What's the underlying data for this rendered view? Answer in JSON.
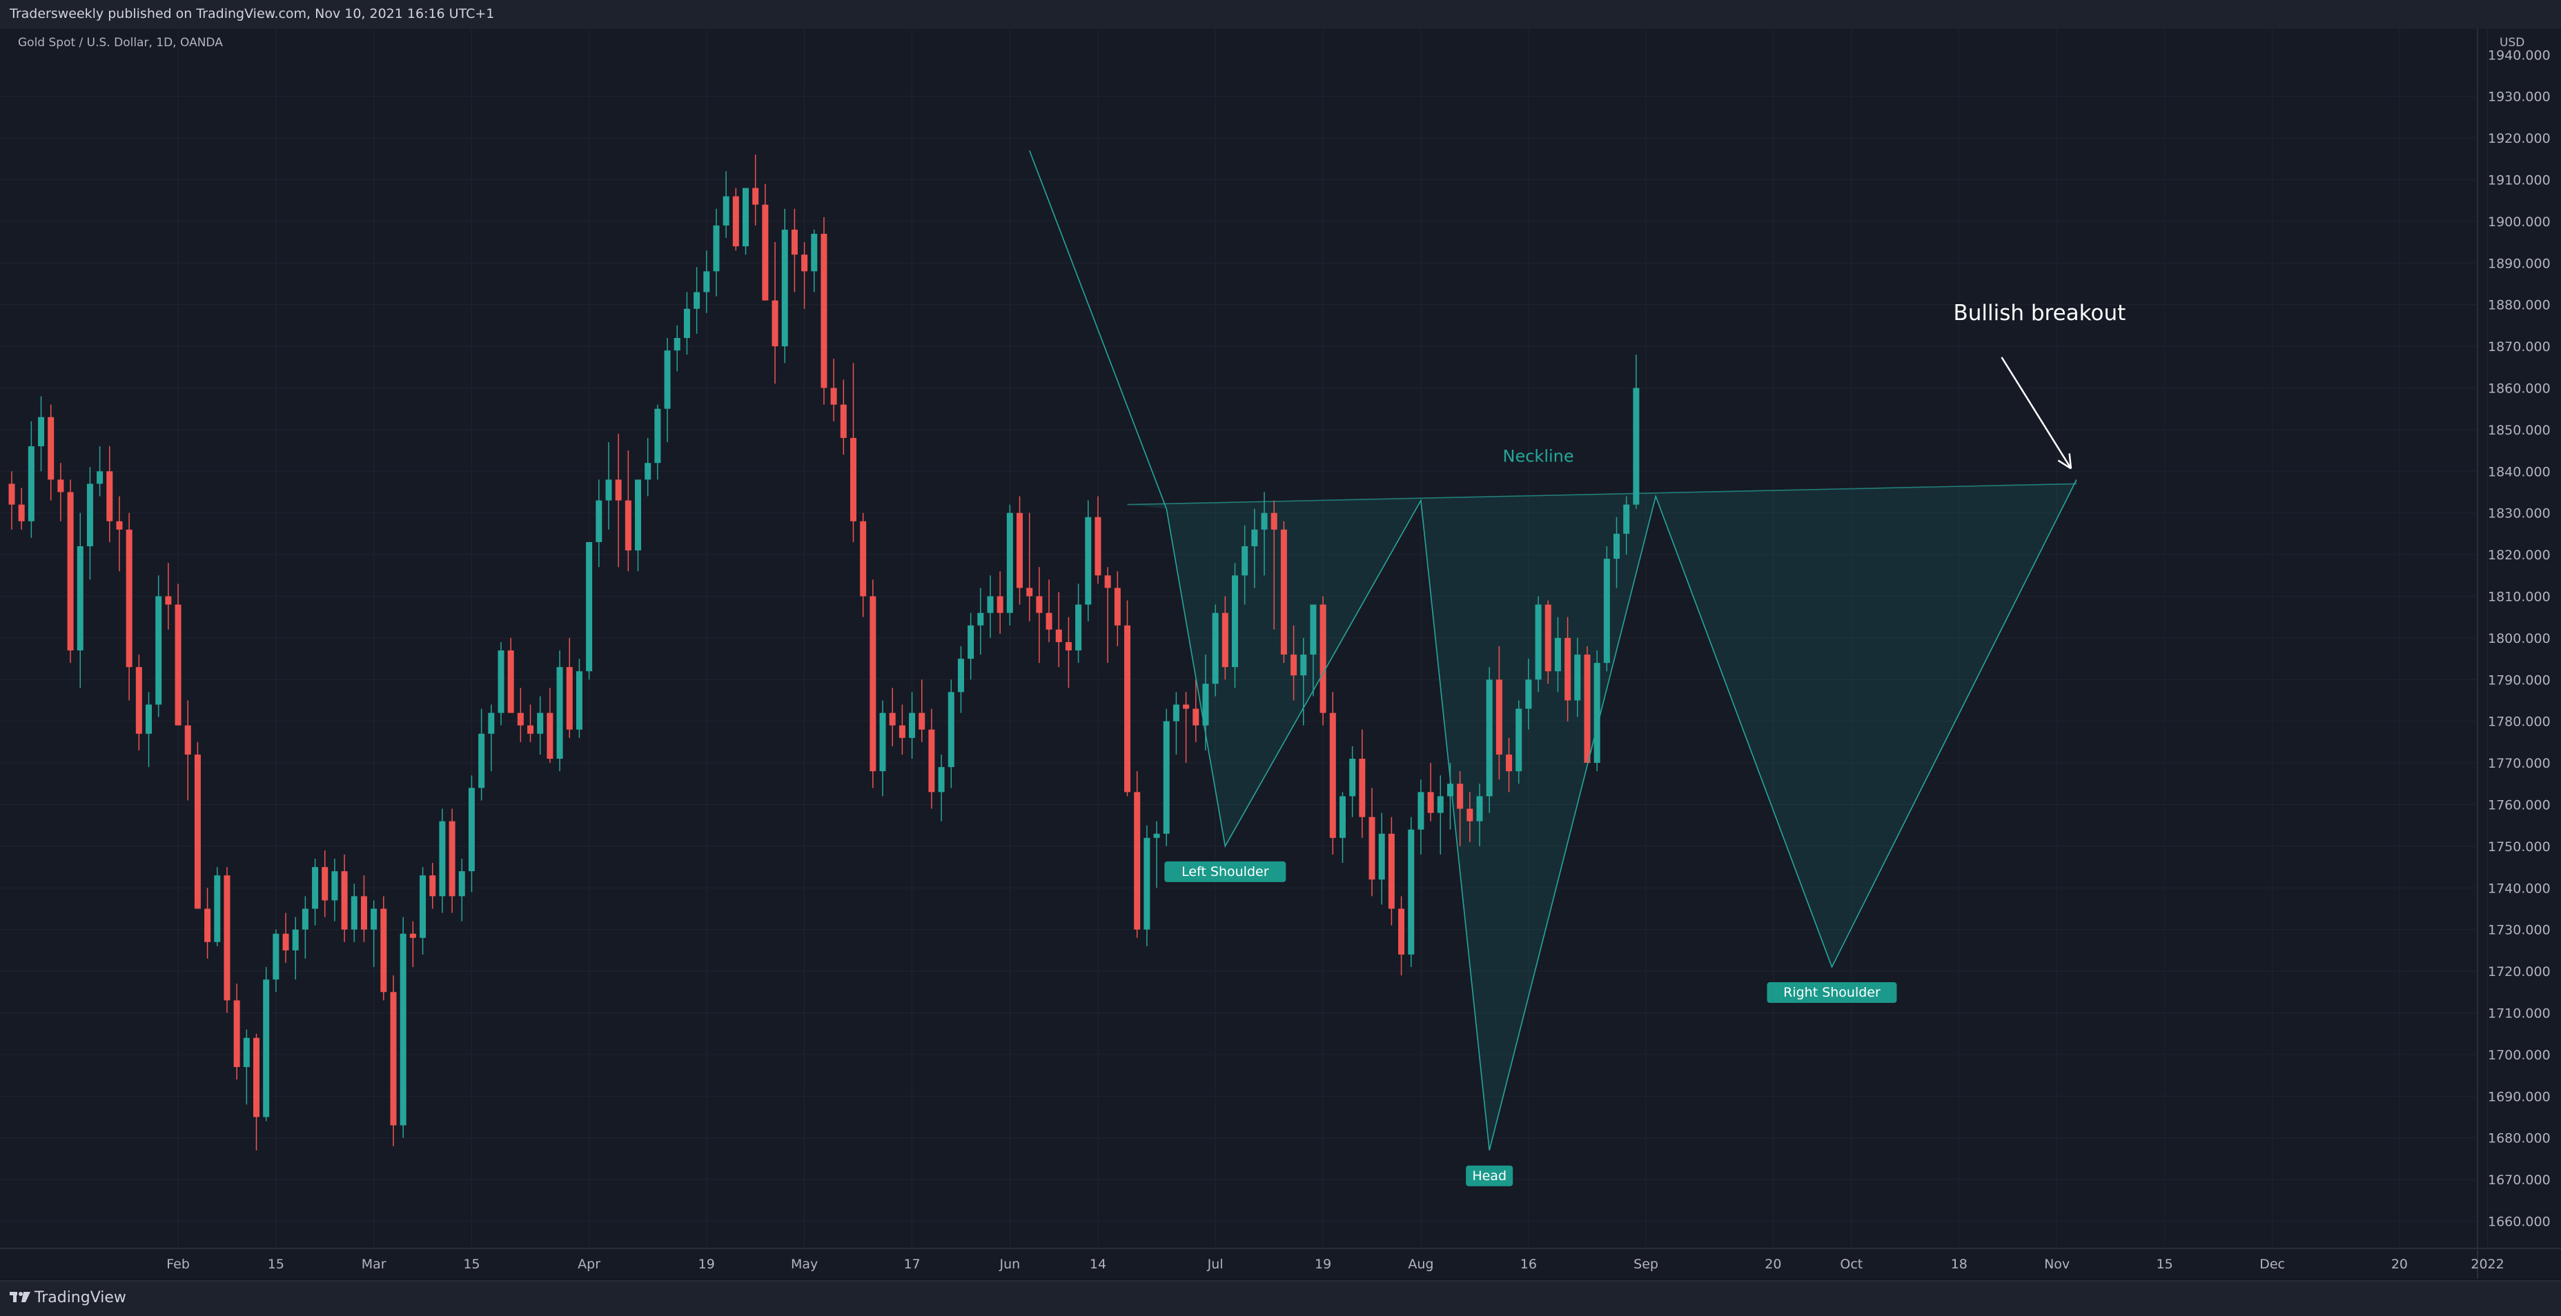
{
  "header": {
    "published": "Tradersweekly published on TradingView.com, Nov 10, 2021 16:16 UTC+1"
  },
  "symbol": {
    "label": "Gold Spot / U.S. Dollar, 1D, OANDA"
  },
  "currency": "USD",
  "footer": {
    "brand": "TradingView"
  },
  "colors": {
    "bg": "#161a25",
    "up": "#26a69a",
    "down": "#ef5350",
    "pattern": "#26a69a",
    "grid": "#1f2430"
  },
  "chart_data": {
    "type": "candlestick",
    "title": "",
    "ylim": [
      1652,
      1954
    ],
    "y_ticks": [
      1660,
      1670,
      1680,
      1690,
      1700,
      1710,
      1720,
      1730,
      1740,
      1750,
      1760,
      1770,
      1780,
      1790,
      1800,
      1810,
      1820,
      1830,
      1840,
      1850,
      1860,
      1870,
      1880,
      1890,
      1900,
      1910,
      1920,
      1930
    ],
    "top_tick_label": "1940.000",
    "x_ticks": [
      {
        "label": "Feb",
        "i": 17
      },
      {
        "label": "15",
        "i": 27
      },
      {
        "label": "Mar",
        "i": 37
      },
      {
        "label": "15",
        "i": 47
      },
      {
        "label": "Apr",
        "i": 59
      },
      {
        "label": "19",
        "i": 71
      },
      {
        "label": "May",
        "i": 81
      },
      {
        "label": "17",
        "i": 92
      },
      {
        "label": "Jun",
        "i": 102
      },
      {
        "label": "14",
        "i": 111
      },
      {
        "label": "Jul",
        "i": 123
      },
      {
        "label": "19",
        "i": 134
      },
      {
        "label": "Aug",
        "i": 144
      },
      {
        "label": "16",
        "i": 155
      },
      {
        "label": "Sep",
        "i": 167
      },
      {
        "label": "20",
        "i": 180
      },
      {
        "label": "Oct",
        "i": 188
      },
      {
        "label": "18",
        "i": 199
      },
      {
        "label": "Nov",
        "i": 209
      },
      {
        "label": "15",
        "i": 220
      },
      {
        "label": "Dec",
        "i": 231
      },
      {
        "label": "20",
        "i": 244
      },
      {
        "label": "2022",
        "i": 253
      }
    ],
    "x_start_date": "Jan 18, 2021",
    "series": [
      [
        1837,
        1840,
        1826,
        1832
      ],
      [
        1832,
        1836,
        1826,
        1828
      ],
      [
        1828,
        1852,
        1824,
        1846
      ],
      [
        1846,
        1858,
        1840,
        1853
      ],
      [
        1853,
        1856,
        1833,
        1838
      ],
      [
        1838,
        1842,
        1828,
        1835
      ],
      [
        1835,
        1838,
        1794,
        1797
      ],
      [
        1797,
        1830,
        1788,
        1822
      ],
      [
        1822,
        1841,
        1814,
        1837
      ],
      [
        1837,
        1846,
        1834,
        1840
      ],
      [
        1840,
        1846,
        1823,
        1828
      ],
      [
        1828,
        1834,
        1816,
        1826
      ],
      [
        1826,
        1830,
        1785,
        1793
      ],
      [
        1793,
        1796,
        1773,
        1777
      ],
      [
        1777,
        1787,
        1769,
        1784
      ],
      [
        1784,
        1815,
        1781,
        1810
      ],
      [
        1810,
        1818,
        1802,
        1808
      ],
      [
        1808,
        1813,
        1781,
        1779
      ],
      [
        1779,
        1785,
        1761,
        1772
      ],
      [
        1772,
        1775,
        1735,
        1735
      ],
      [
        1735,
        1740,
        1723,
        1727
      ],
      [
        1727,
        1745,
        1726,
        1743
      ],
      [
        1743,
        1745,
        1710,
        1713
      ],
      [
        1713,
        1717,
        1694,
        1697
      ],
      [
        1697,
        1706,
        1688,
        1704
      ],
      [
        1704,
        1705,
        1677,
        1685
      ],
      [
        1685,
        1721,
        1684,
        1718
      ],
      [
        1718,
        1730,
        1715,
        1729
      ],
      [
        1729,
        1734,
        1722,
        1725
      ],
      [
        1725,
        1733,
        1718,
        1730
      ],
      [
        1730,
        1738,
        1723,
        1735
      ],
      [
        1735,
        1747,
        1731,
        1745
      ],
      [
        1745,
        1749,
        1733,
        1737
      ],
      [
        1737,
        1747,
        1732,
        1744
      ],
      [
        1744,
        1748,
        1727,
        1730
      ],
      [
        1730,
        1741,
        1727,
        1738
      ],
      [
        1738,
        1743,
        1727,
        1730
      ],
      [
        1730,
        1737,
        1721,
        1735
      ],
      [
        1735,
        1738,
        1713,
        1715
      ],
      [
        1715,
        1719,
        1678,
        1683
      ],
      [
        1683,
        1733,
        1680,
        1729
      ],
      [
        1729,
        1732,
        1721,
        1728
      ],
      [
        1728,
        1745,
        1724,
        1743
      ],
      [
        1743,
        1746,
        1735,
        1738
      ],
      [
        1738,
        1759,
        1734,
        1756
      ],
      [
        1756,
        1759,
        1734,
        1738
      ],
      [
        1738,
        1747,
        1732,
        1744
      ],
      [
        1744,
        1767,
        1739,
        1764
      ],
      [
        1764,
        1783,
        1761,
        1777
      ],
      [
        1777,
        1784,
        1768,
        1782
      ],
      [
        1782,
        1799,
        1779,
        1797
      ],
      [
        1797,
        1800,
        1786,
        1782
      ],
      [
        1782,
        1788,
        1775,
        1779
      ],
      [
        1779,
        1784,
        1775,
        1777
      ],
      [
        1777,
        1786,
        1772,
        1782
      ],
      [
        1782,
        1788,
        1770,
        1771
      ],
      [
        1771,
        1797,
        1768,
        1793
      ],
      [
        1793,
        1800,
        1776,
        1778
      ],
      [
        1778,
        1795,
        1776,
        1792
      ],
      [
        1792,
        1823,
        1790,
        1823
      ],
      [
        1823,
        1838,
        1817,
        1833
      ],
      [
        1833,
        1847,
        1826,
        1838
      ],
      [
        1838,
        1849,
        1817,
        1833
      ],
      [
        1833,
        1845,
        1816,
        1821
      ],
      [
        1821,
        1835,
        1816,
        1838
      ],
      [
        1838,
        1848,
        1834,
        1842
      ],
      [
        1842,
        1856,
        1838,
        1855
      ],
      [
        1855,
        1872,
        1847,
        1869
      ],
      [
        1869,
        1875,
        1864,
        1872
      ],
      [
        1872,
        1883,
        1868,
        1879
      ],
      [
        1879,
        1889,
        1873,
        1883
      ],
      [
        1883,
        1893,
        1878,
        1888
      ],
      [
        1888,
        1903,
        1882,
        1899
      ],
      [
        1899,
        1912,
        1896,
        1906
      ],
      [
        1906,
        1908,
        1893,
        1894
      ],
      [
        1894,
        1907,
        1892,
        1908
      ],
      [
        1908,
        1916,
        1899,
        1904
      ],
      [
        1904,
        1909,
        1881,
        1881
      ],
      [
        1881,
        1895,
        1861,
        1870
      ],
      [
        1870,
        1903,
        1866,
        1898
      ],
      [
        1898,
        1903,
        1883,
        1892
      ],
      [
        1892,
        1895,
        1879,
        1888
      ],
      [
        1888,
        1898,
        1883,
        1897
      ],
      [
        1897,
        1901,
        1856,
        1860
      ],
      [
        1860,
        1867,
        1852,
        1856
      ],
      [
        1856,
        1862,
        1844,
        1848
      ],
      [
        1848,
        1866,
        1823,
        1828
      ],
      [
        1828,
        1830,
        1805,
        1810
      ],
      [
        1810,
        1814,
        1764,
        1768
      ],
      [
        1768,
        1785,
        1762,
        1782
      ],
      [
        1782,
        1788,
        1774,
        1779
      ],
      [
        1779,
        1784,
        1772,
        1776
      ],
      [
        1776,
        1787,
        1771,
        1782
      ],
      [
        1782,
        1790,
        1775,
        1778
      ],
      [
        1778,
        1783,
        1759,
        1763
      ],
      [
        1763,
        1772,
        1756,
        1769
      ],
      [
        1769,
        1790,
        1764,
        1787
      ],
      [
        1787,
        1798,
        1782,
        1795
      ],
      [
        1795,
        1806,
        1790,
        1803
      ],
      [
        1803,
        1812,
        1796,
        1806
      ],
      [
        1806,
        1815,
        1800,
        1810
      ],
      [
        1810,
        1816,
        1801,
        1806
      ],
      [
        1806,
        1832,
        1803,
        1830
      ],
      [
        1830,
        1834,
        1808,
        1812
      ],
      [
        1812,
        1830,
        1804,
        1810
      ],
      [
        1810,
        1817,
        1794,
        1806
      ],
      [
        1806,
        1814,
        1799,
        1802
      ],
      [
        1802,
        1811,
        1793,
        1799
      ],
      [
        1799,
        1805,
        1788,
        1797
      ],
      [
        1797,
        1813,
        1794,
        1808
      ],
      [
        1808,
        1833,
        1804,
        1829
      ],
      [
        1829,
        1834,
        1813,
        1815
      ],
      [
        1815,
        1817,
        1794,
        1812
      ],
      [
        1812,
        1816,
        1798,
        1803
      ],
      [
        1803,
        1809,
        1762,
        1763
      ],
      [
        1763,
        1768,
        1728,
        1730
      ],
      [
        1730,
        1755,
        1726,
        1752
      ],
      [
        1752,
        1756,
        1740,
        1753
      ],
      [
        1753,
        1783,
        1750,
        1780
      ],
      [
        1780,
        1787,
        1772,
        1784
      ],
      [
        1784,
        1787,
        1770,
        1783
      ],
      [
        1783,
        1790,
        1775,
        1779
      ],
      [
        1779,
        1796,
        1773,
        1789
      ],
      [
        1789,
        1808,
        1786,
        1806
      ],
      [
        1806,
        1810,
        1790,
        1793
      ],
      [
        1793,
        1818,
        1788,
        1815
      ],
      [
        1815,
        1827,
        1808,
        1822
      ],
      [
        1822,
        1831,
        1812,
        1826
      ],
      [
        1826,
        1835,
        1815,
        1830
      ],
      [
        1830,
        1833,
        1802,
        1826
      ],
      [
        1826,
        1828,
        1794,
        1796
      ],
      [
        1796,
        1803,
        1785,
        1791
      ],
      [
        1791,
        1800,
        1779,
        1796
      ],
      [
        1796,
        1805,
        1786,
        1808
      ],
      [
        1808,
        1810,
        1779,
        1782
      ],
      [
        1782,
        1787,
        1748,
        1752
      ],
      [
        1752,
        1763,
        1746,
        1762
      ],
      [
        1762,
        1774,
        1757,
        1771
      ],
      [
        1771,
        1778,
        1752,
        1757
      ],
      [
        1757,
        1764,
        1738,
        1742
      ],
      [
        1742,
        1758,
        1736,
        1753
      ],
      [
        1753,
        1757,
        1731,
        1735
      ],
      [
        1735,
        1738,
        1719,
        1724
      ],
      [
        1724,
        1757,
        1721,
        1754
      ],
      [
        1754,
        1766,
        1748,
        1763
      ],
      [
        1763,
        1770,
        1756,
        1758
      ],
      [
        1758,
        1767,
        1748,
        1762
      ],
      [
        1762,
        1770,
        1754,
        1765
      ],
      [
        1765,
        1768,
        1750,
        1759
      ],
      [
        1759,
        1763,
        1751,
        1756
      ],
      [
        1756,
        1765,
        1750,
        1762
      ],
      [
        1762,
        1793,
        1758,
        1790
      ],
      [
        1790,
        1798,
        1766,
        1772
      ],
      [
        1772,
        1776,
        1763,
        1768
      ],
      [
        1768,
        1785,
        1765,
        1783
      ],
      [
        1783,
        1795,
        1778,
        1790
      ],
      [
        1790,
        1810,
        1787,
        1808
      ],
      [
        1808,
        1809,
        1789,
        1792
      ],
      [
        1792,
        1805,
        1787,
        1800
      ],
      [
        1800,
        1805,
        1780,
        1785
      ],
      [
        1785,
        1800,
        1781,
        1796
      ],
      [
        1796,
        1798,
        1771,
        1770
      ],
      [
        1770,
        1797,
        1768,
        1794
      ],
      [
        1794,
        1822,
        1792,
        1819
      ],
      [
        1819,
        1829,
        1812,
        1825
      ],
      [
        1825,
        1834,
        1820,
        1832
      ],
      [
        1832,
        1868,
        1831,
        1860
      ]
    ],
    "pattern": {
      "zigzag": [
        [
          104,
          1917
        ],
        [
          118,
          1831
        ],
        [
          124,
          1750
        ],
        [
          144,
          1833
        ],
        [
          151,
          1677
        ],
        [
          168,
          1834
        ],
        [
          186,
          1721
        ],
        [
          211,
          1838
        ]
      ],
      "neckline": [
        [
          114,
          1832
        ],
        [
          211,
          1837
        ]
      ],
      "labels": [
        {
          "text": "Left Shoulder",
          "i": 124,
          "y": 1750
        },
        {
          "text": "Head",
          "i": 151,
          "y": 1677
        },
        {
          "text": "Right Shoulder",
          "i": 186,
          "y": 1721
        }
      ],
      "neckline_label": "Neckline",
      "neckline_label_pos": {
        "i": 156,
        "y": 1840
      }
    },
    "annotation": {
      "text": "Bullish breakout",
      "arrow_from": [
        197,
        1874
      ],
      "arrow_to": [
        211,
        1839
      ]
    }
  }
}
